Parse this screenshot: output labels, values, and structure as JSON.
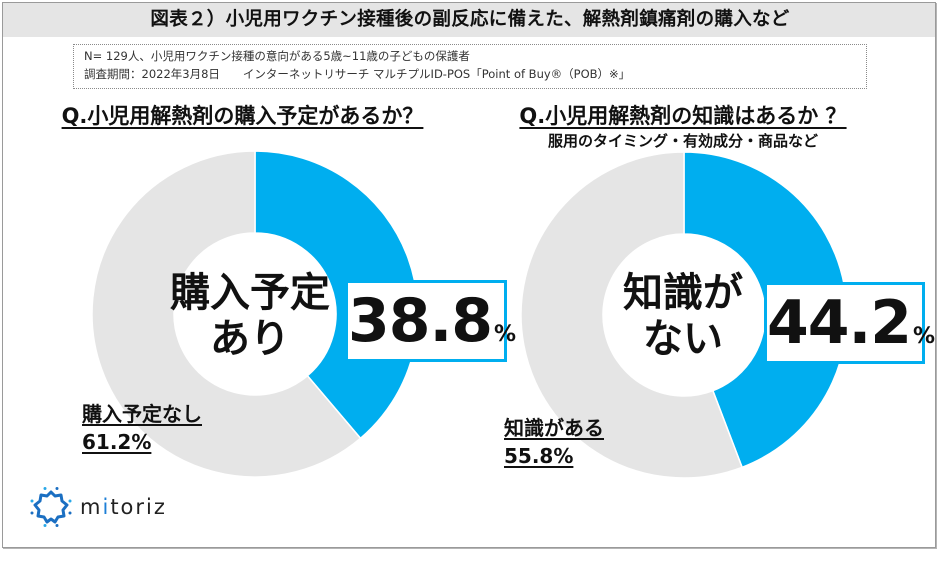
{
  "header": {
    "title": "図表２）小児用ワクチン接種後の副反応に備えた、解熱剤鎮痛剤の購入など"
  },
  "note": {
    "line1": "N= 129人、小児用ワクチン接種の意向がある5歳~11歳の子どもの保護者",
    "line2": "調査期間：2022年3月8日　　インターネットリサーチ マルチプルID-POS「Point of Buy®（POB）※」"
  },
  "colors": {
    "accent": "#00aeef",
    "rest": "#e5e5e5",
    "header_band": "#e5e5e5"
  },
  "left_chart": {
    "question": "Q.小児用解熱剤の購入予定があるか？",
    "center_line1": "購入予定",
    "center_line2": "あり",
    "highlight_value": "38.8",
    "highlight_unit": "%",
    "other_label": "購入予定なし",
    "other_value": "61.2%"
  },
  "right_chart": {
    "question": "Q.小児用解熱剤の知識はあるか ？",
    "subtitle": "服用のタイミング・有効成分・商品など",
    "center_line1": "知識が",
    "center_line2": "ない",
    "highlight_value": "44.2",
    "highlight_unit": "%",
    "other_label": "知識がある",
    "other_value": "55.8%"
  },
  "logo": {
    "icon": "mitoriz-sun-icon",
    "text_before": "m",
    "text_accent": "i",
    "text_after": "toriz"
  },
  "chart_data": [
    {
      "type": "pie",
      "subtype": "donut",
      "title": "Q.小児用解熱剤の購入予定があるか？",
      "categories": [
        "購入予定あり",
        "購入予定なし"
      ],
      "values": [
        38.8,
        61.2
      ],
      "unit": "%",
      "colors": [
        "#00aeef",
        "#e5e5e5"
      ],
      "start_angle": "12 o'clock, clockwise",
      "n": 129
    },
    {
      "type": "pie",
      "subtype": "donut",
      "title": "Q.小児用解熱剤の知識はあるか ？",
      "subtitle": "服用のタイミング・有効成分・商品など",
      "categories": [
        "知識がない",
        "知識がある"
      ],
      "values": [
        44.2,
        55.8
      ],
      "unit": "%",
      "colors": [
        "#00aeef",
        "#e5e5e5"
      ],
      "start_angle": "12 o'clock, clockwise",
      "n": 129
    }
  ]
}
